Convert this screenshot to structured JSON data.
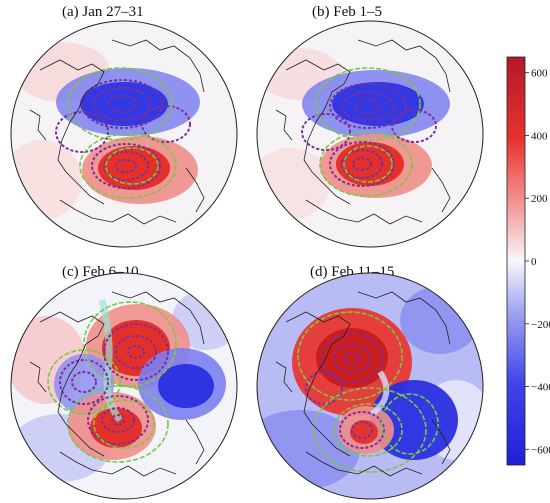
{
  "panels": [
    {
      "title": "(a) Jan 27–31"
    },
    {
      "title": "(b) Feb 1–5"
    },
    {
      "title": "(c) Feb 6–10"
    },
    {
      "title": "(d) Feb 11–15"
    }
  ],
  "colorbar": {
    "ticks": [
      "600",
      "400",
      "200",
      "0",
      "−200",
      "−400",
      "−600"
    ],
    "tick_values": [
      600,
      400,
      200,
      0,
      -200,
      -400,
      -600
    ],
    "range": [
      -650,
      650
    ],
    "colors": {
      "max": "#b2182b",
      "mid_high": "#f4a3a3",
      "zero": "#f7f7fb",
      "mid_low": "#9aa0f0",
      "min": "#1f20d8"
    }
  },
  "colors": {
    "positive": "#e8332c",
    "negative": "#2a2fe0",
    "contour_purple": "#7a2f9e",
    "contour_green": "#7cc644",
    "coast": "#222222"
  }
}
